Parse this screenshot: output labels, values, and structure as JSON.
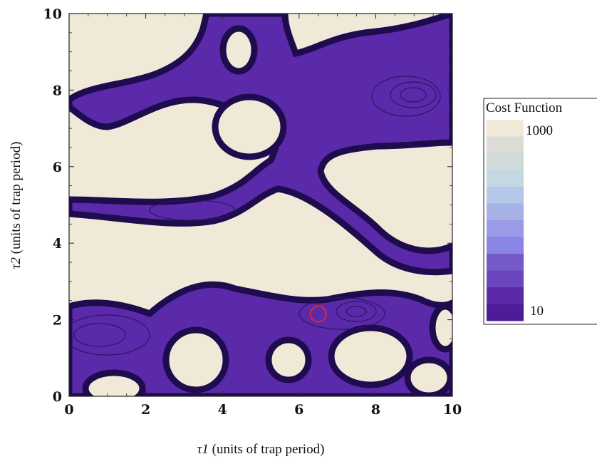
{
  "chart_data": {
    "type": "heatmap",
    "subtype": "contour",
    "xlabel_prefix": "τ1",
    "xlabel_suffix": " (units of trap period)",
    "ylabel_prefix": "τ2",
    "ylabel_suffix": " (units of trap period)",
    "xlim": [
      0,
      10
    ],
    "ylim": [
      0,
      10
    ],
    "x_ticks": [
      "0",
      "2",
      "4",
      "6",
      "8",
      "10"
    ],
    "y_ticks": [
      "0",
      "2",
      "4",
      "6",
      "8",
      "10"
    ],
    "marker": {
      "x": 6.5,
      "y": 2.15,
      "color": "#e8232a"
    },
    "legend": {
      "title": "Cost Function",
      "max_label": "1000",
      "min_label": "10",
      "swatches": [
        "#f1e9d7",
        "#dcdcd6",
        "#d0dad9",
        "#c3d8e3",
        "#b4c8e8",
        "#a6b1e6",
        "#9a9ae6",
        "#8a84e4",
        "#7659c9",
        "#6a46be",
        "#5b2aa8",
        "#4d1c98"
      ]
    },
    "colors": {
      "background": "#f1e9d7",
      "basin_fill": "#5b2aaa",
      "basin_edge": "#1f0c4f",
      "contour_line": "#2c1660",
      "secondary_fill": "#7f6fd6"
    }
  }
}
